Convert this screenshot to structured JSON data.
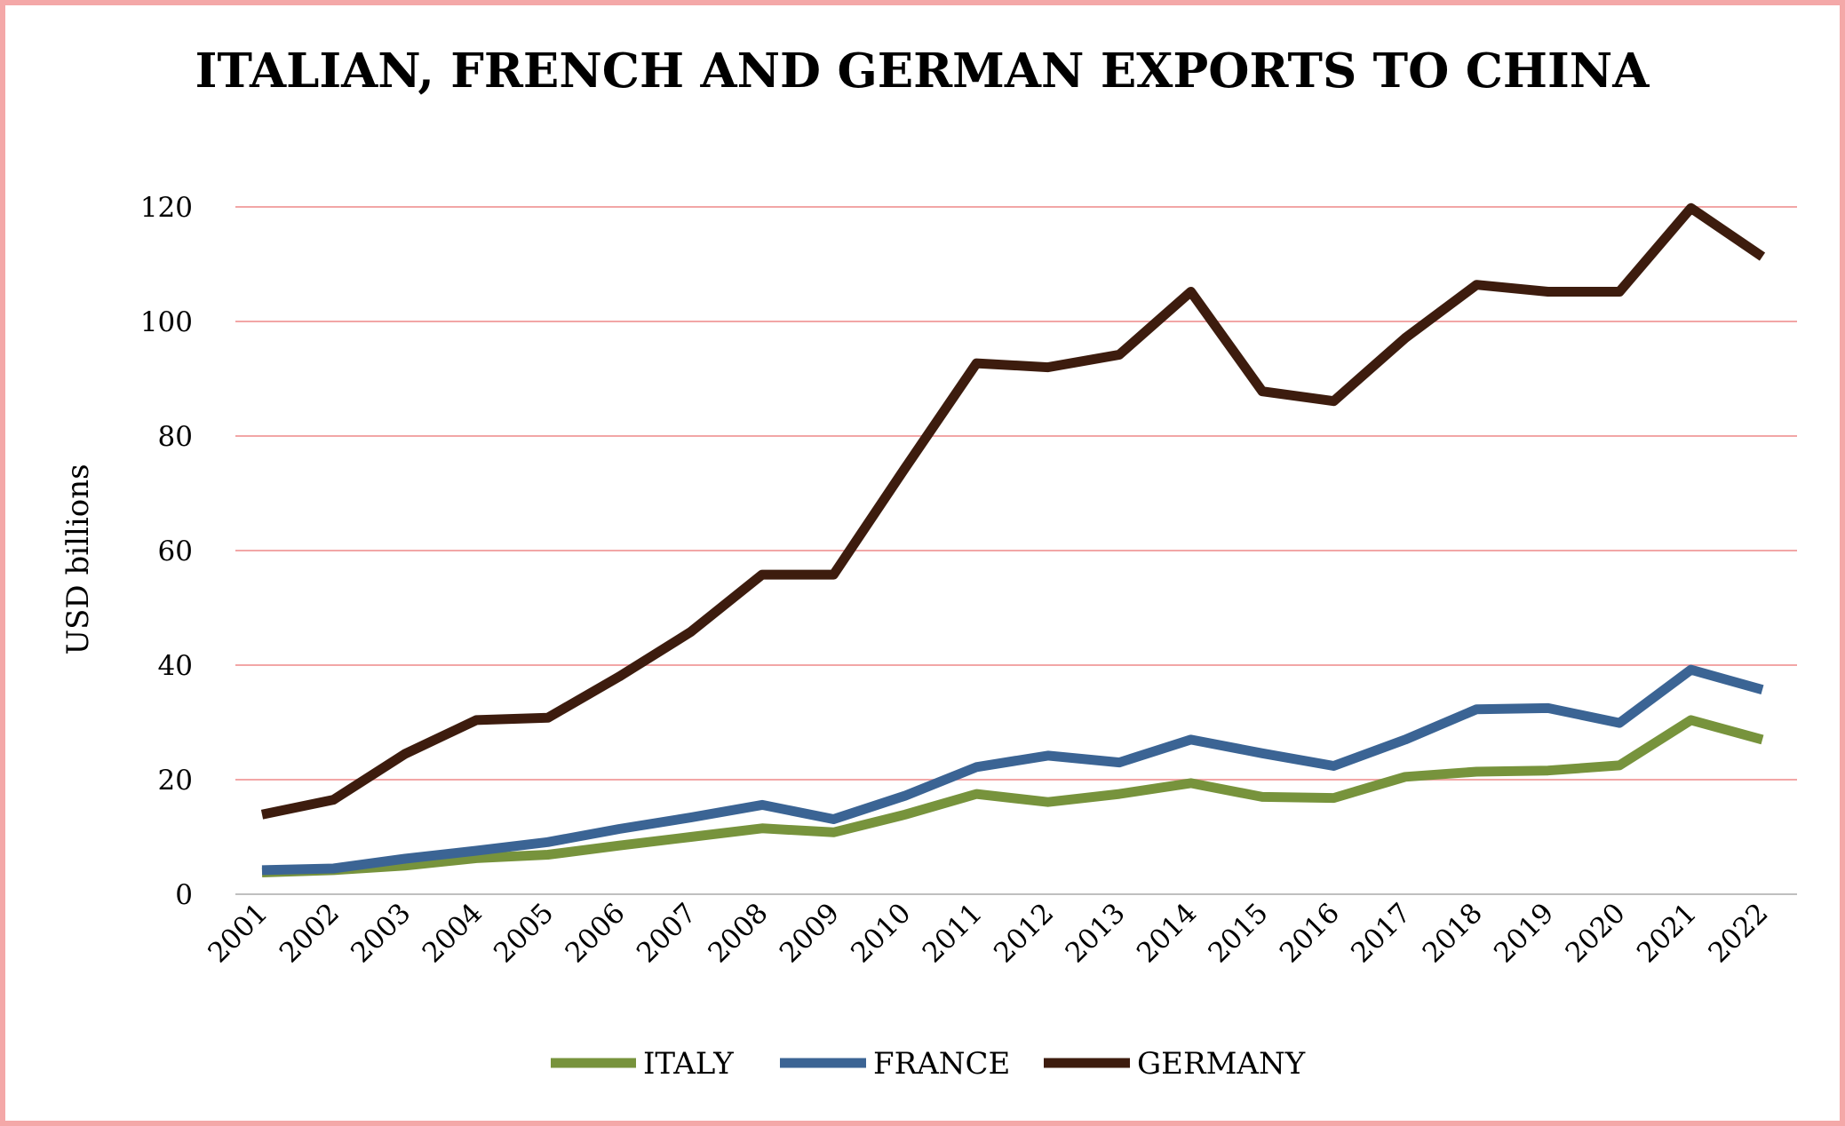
{
  "chart_data": {
    "type": "line",
    "title": "ITALIAN, FRENCH AND GERMAN EXPORTS TO CHINA",
    "xlabel": "",
    "ylabel": "USD billions",
    "ylim": [
      0,
      120
    ],
    "yticks": [
      0,
      20,
      40,
      60,
      80,
      100,
      120
    ],
    "grid": true,
    "legend": "bottom",
    "x": [
      "2001",
      "2002",
      "2003",
      "2004",
      "2005",
      "2006",
      "2007",
      "2008",
      "2009",
      "2010",
      "2011",
      "2012",
      "2013",
      "2014",
      "2015",
      "2016",
      "2017",
      "2018",
      "2019",
      "2020",
      "2021",
      "2022"
    ],
    "series": [
      {
        "name": "ITALY",
        "color": "#77933c",
        "values": [
          3.8,
          4.2,
          5,
          6.3,
          6.9,
          8.5,
          10,
          11.5,
          10.8,
          13.9,
          17.5,
          16.1,
          17.5,
          19.4,
          17,
          16.8,
          20.5,
          21.4,
          21.6,
          22.5,
          30.4,
          27
        ]
      },
      {
        "name": "FRANCE",
        "color": "#3b6494",
        "values": [
          4.2,
          4.5,
          6.2,
          7.6,
          9.1,
          11.4,
          13.4,
          15.6,
          13.1,
          17.2,
          22.2,
          24.2,
          23,
          27,
          24.6,
          22.4,
          27,
          32.3,
          32.5,
          29.9,
          39.2,
          35.7
        ]
      },
      {
        "name": "GERMANY",
        "color": "#3d1c0e",
        "values": [
          13.9,
          16.5,
          24.5,
          30.4,
          30.8,
          38,
          45.8,
          55.8,
          55.8,
          74.4,
          92.7,
          92,
          94.2,
          105.2,
          87.8,
          86.1,
          97.1,
          106.4,
          105.2,
          105.2,
          119.8,
          111.3
        ]
      }
    ]
  },
  "colors": {
    "frame": "#f4a8a8",
    "gridline": "#f2a6a6",
    "axis": "#bfbfbf"
  }
}
